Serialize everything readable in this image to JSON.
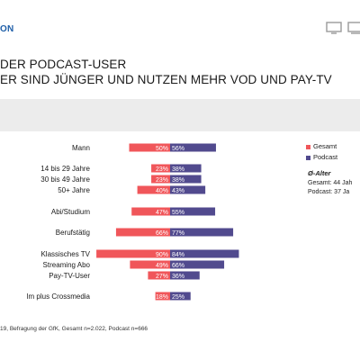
{
  "header": {
    "brand": "ON",
    "icons": [
      "monitor-icon",
      "tv-icon"
    ]
  },
  "titles": {
    "line1": "DER PODCAST-USER",
    "line2": "ER SIND JÜNGER UND NUTZEN MEHR VOD UND PAY-TV"
  },
  "legend": {
    "gesamt": "Gesamt",
    "podcast": "Podcast"
  },
  "age": {
    "title": "Ø-Alter",
    "gesamt": "Gesamt: 44 Jah",
    "podcast": "Podcast: 37 Ja"
  },
  "footnote": "19, Befragung der GfK, Gesamt n=2.022, Podcast n=666",
  "colors": {
    "gesamt": "#f0565a",
    "podcast": "#514a8e",
    "band": "#ececec"
  },
  "chart_data": {
    "type": "bar",
    "orientation": "horizontal-diverging",
    "categories": [
      "Mann",
      "14 bis 29 Jahre",
      "30 bis 49 Jahre",
      "50+ Jahre",
      "Abi/Studium",
      "Berufstätig",
      "Klassisches TV",
      "Streaming Abo",
      "Pay-TV-User",
      "lm plus Crossmedia"
    ],
    "series": [
      {
        "name": "Gesamt",
        "values": [
          50,
          23,
          23,
          40,
          47,
          66,
          90,
          49,
          27,
          18
        ],
        "labels": [
          "50%",
          "23%",
          "23%",
          "40%",
          "47%",
          "66%",
          "90%",
          "49%",
          "27%",
          "18%"
        ]
      },
      {
        "name": "Podcast",
        "values": [
          56,
          38,
          38,
          43,
          55,
          77,
          84,
          66,
          36,
          25
        ],
        "labels": [
          "56%",
          "38%",
          "38%",
          "43%",
          "55%",
          "77%",
          "84%",
          "66%",
          "36%",
          "25%"
        ]
      }
    ],
    "unit": "%"
  }
}
